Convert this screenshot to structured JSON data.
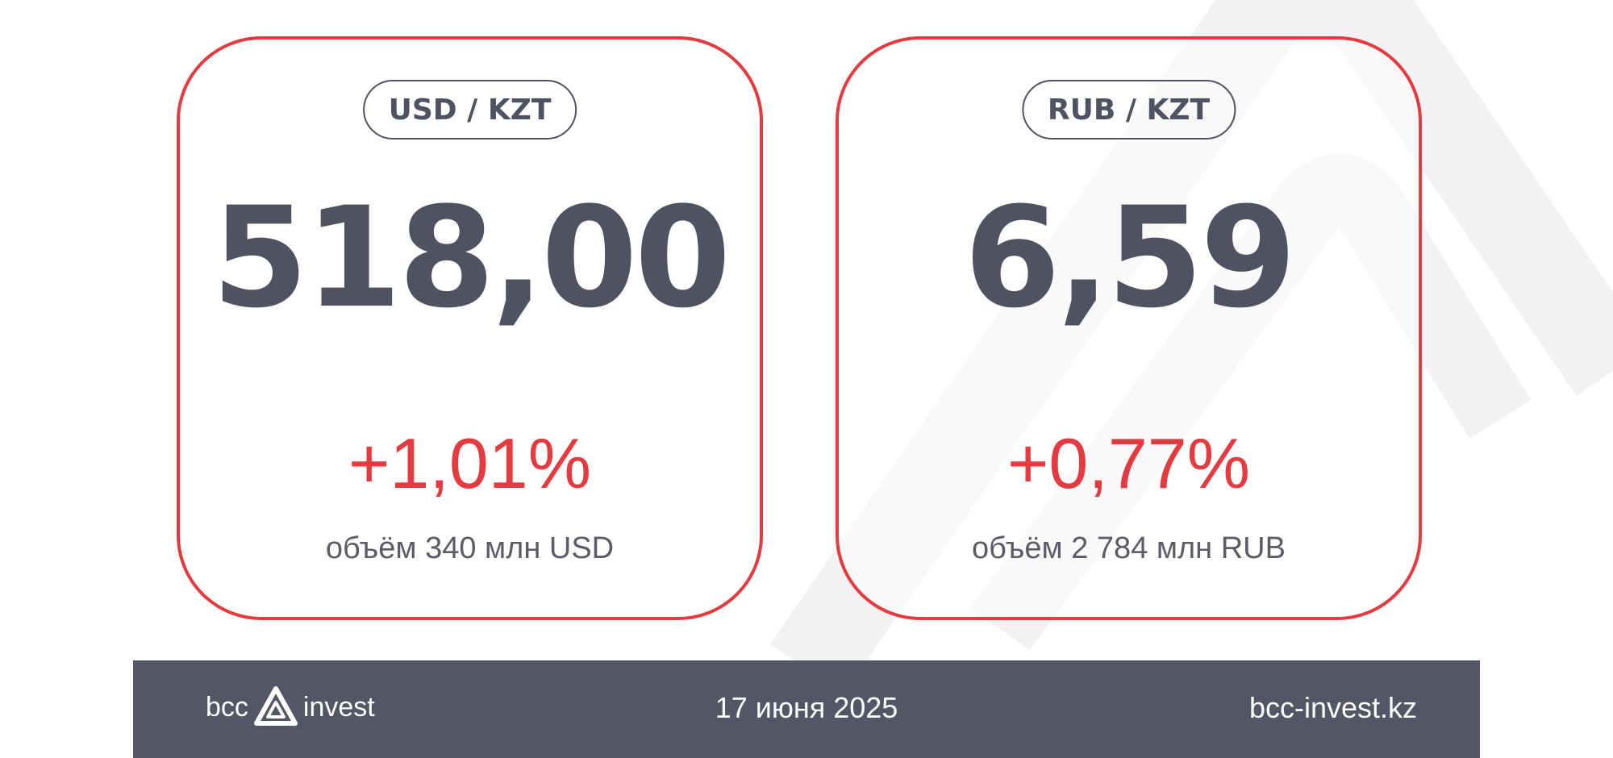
{
  "cards": [
    {
      "pair": "USD / KZT",
      "rate": "518,00",
      "change": "+1,01%",
      "volume": "объём 340 млн USD"
    },
    {
      "pair": "RUB / KZT",
      "rate": "6,59",
      "change": "+0,77%",
      "volume": "объём 2 784 млн RUB"
    }
  ],
  "footer": {
    "logo_left": "bcc",
    "logo_right": "invest",
    "date": "17 июня 2025",
    "url": "bcc-invest.kz"
  },
  "colors": {
    "accent": "#e53a3f",
    "text": "#4f5261",
    "footer_bg": "#535664"
  },
  "icons": {
    "logo": "bcc-triangle-logo-icon",
    "watermark": "triangle-watermark-icon"
  }
}
